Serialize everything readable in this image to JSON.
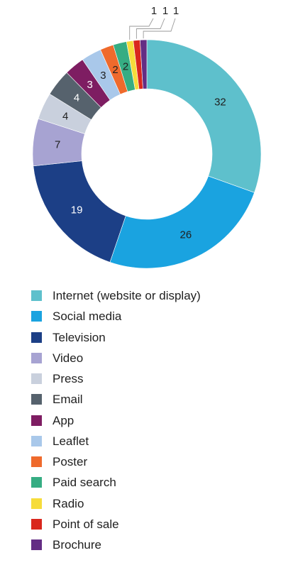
{
  "chart_data": {
    "type": "donut",
    "series": [
      {
        "name": "Internet (website or display)",
        "value": 32,
        "color": "#5ec0cc"
      },
      {
        "name": "Social media",
        "value": 26,
        "color": "#1aa3e0"
      },
      {
        "name": "Television",
        "value": 19,
        "color": "#1c3f86"
      },
      {
        "name": "Video",
        "value": 7,
        "color": "#a7a3d2"
      },
      {
        "name": "Press",
        "value": 4,
        "color": "#c9d0dd"
      },
      {
        "name": "Email",
        "value": 4,
        "color": "#56626d"
      },
      {
        "name": "App",
        "value": 3,
        "color": "#7e1d62"
      },
      {
        "name": "Leaflet",
        "value": 3,
        "color": "#a9c8ea"
      },
      {
        "name": "Poster",
        "value": 2,
        "color": "#ef6a2c"
      },
      {
        "name": "Paid search",
        "value": 2,
        "color": "#36ad83"
      },
      {
        "name": "Radio",
        "value": 1,
        "color": "#f6dc3b"
      },
      {
        "name": "Point of sale",
        "value": 1,
        "color": "#d9271d"
      },
      {
        "name": "Brochure",
        "value": 1,
        "color": "#642d84"
      }
    ],
    "legend_position": "bottom",
    "label_style": "values on slices; smallest slices labelled via leader lines"
  }
}
